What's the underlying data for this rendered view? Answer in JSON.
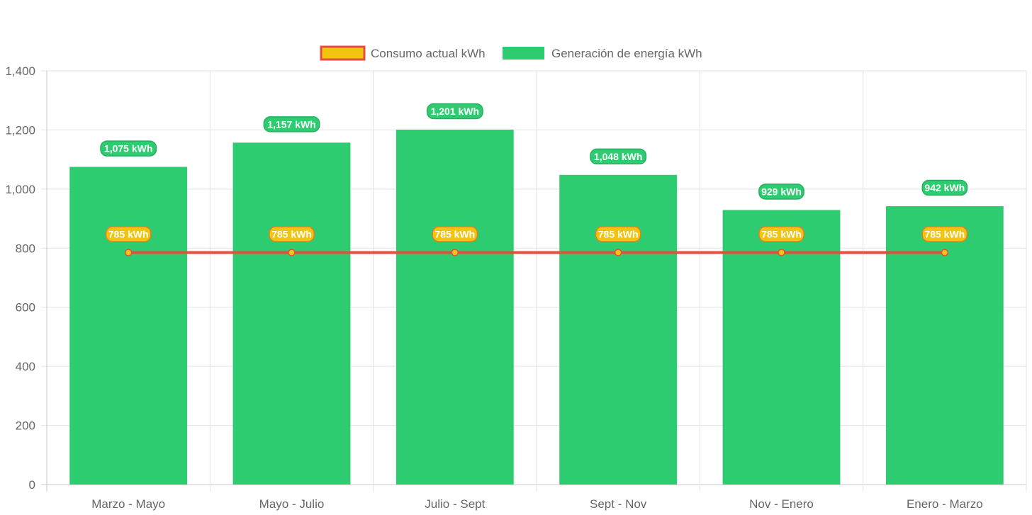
{
  "chart_data": {
    "type": "bar",
    "categories": [
      "Marzo - Mayo",
      "Mayo - Julio",
      "Julio - Sept",
      "Sept - Nov",
      "Nov - Enero",
      "Enero - Marzo"
    ],
    "series": [
      {
        "name": "Consumo actual kWh",
        "type": "line",
        "values": [
          785,
          785,
          785,
          785,
          785,
          785
        ],
        "labels": [
          "785 kWh",
          "785 kWh",
          "785 kWh",
          "785 kWh",
          "785 kWh",
          "785 kWh"
        ],
        "color": "#e74c3c",
        "fill_color": "#f1c40f"
      },
      {
        "name": "Generación de energía kWh",
        "type": "bar",
        "values": [
          1075,
          1157,
          1201,
          1048,
          929,
          942
        ],
        "labels": [
          "1,075 kWh",
          "1,157 kWh",
          "1,201 kWh",
          "1,048 kWh",
          "929 kWh",
          "942 kWh"
        ],
        "color": "#2ecc71"
      }
    ],
    "ylim": [
      0,
      1400
    ],
    "yticks": [
      0,
      200,
      400,
      600,
      800,
      1000,
      1200,
      1400
    ],
    "ytick_labels": [
      "0",
      "200",
      "400",
      "600",
      "800",
      "1,000",
      "1,200",
      "1,400"
    ],
    "grid": true,
    "legend_position": "top"
  }
}
